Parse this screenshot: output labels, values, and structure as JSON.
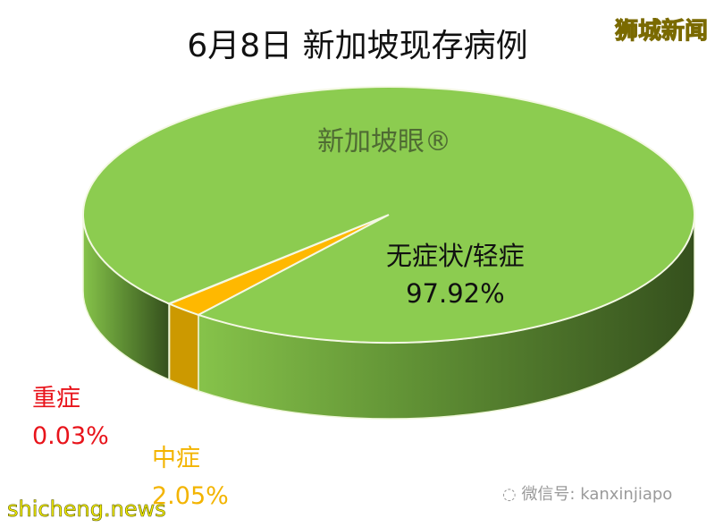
{
  "title": "6月8日 新加坡现存病例",
  "watermarks": {
    "top_right": "狮城新闻",
    "pie": "新加坡眼®",
    "wechat": "微信号: kanxinjiapo",
    "site": "shicheng.news"
  },
  "chart_data": {
    "type": "pie",
    "style": "3d",
    "title": "6月8日 新加坡现存病例",
    "slices": [
      {
        "label": "无症状/轻症",
        "value": 97.92,
        "display": "97.92%",
        "color": "#8ccc50"
      },
      {
        "label": "中症",
        "value": 2.05,
        "display": "2.05%",
        "color": "#ffb800"
      },
      {
        "label": "重症",
        "value": 0.03,
        "display": "0.03%",
        "color": "#e8141b"
      }
    ],
    "label_colors": {
      "无症状/轻症": "#111111",
      "中症": "#f3b400",
      "重症": "#e8141b"
    }
  }
}
